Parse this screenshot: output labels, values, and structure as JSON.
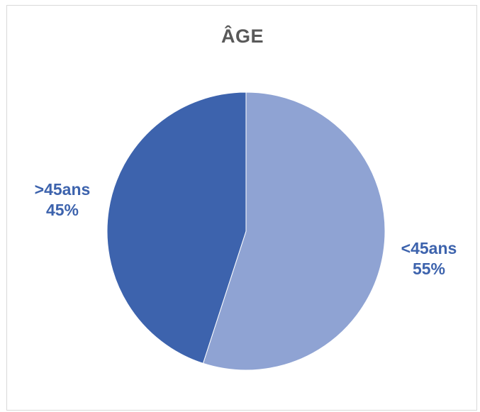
{
  "chart_data": {
    "type": "pie",
    "title": "ÂGE",
    "slices": [
      {
        "label": "<45ans",
        "percent_label": "55%",
        "value": 55,
        "color": "#8fa3d3"
      },
      {
        "label": ">45ans",
        "percent_label": "45%",
        "value": 45,
        "color": "#3d63ad"
      }
    ],
    "label_color": "#3d63ad",
    "legend": "none"
  }
}
